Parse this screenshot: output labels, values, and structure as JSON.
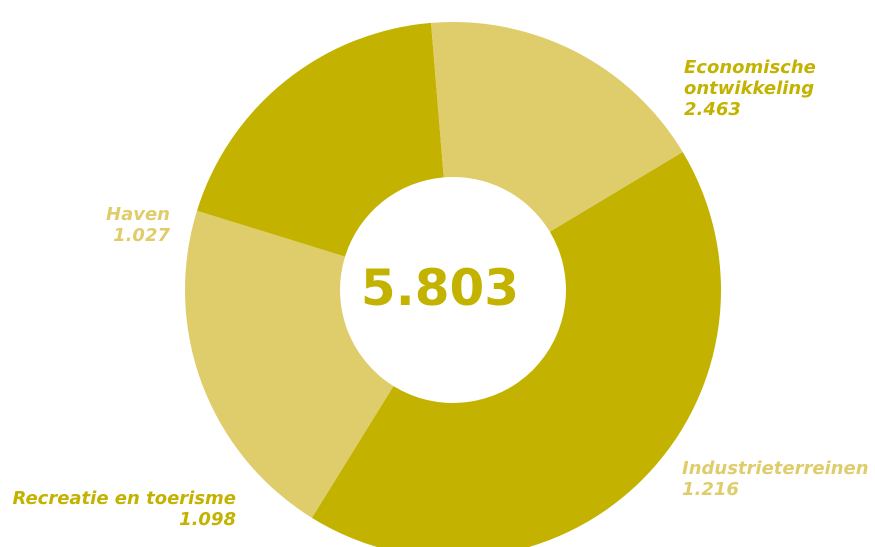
{
  "chart_data": {
    "type": "pie",
    "variant": "donut",
    "total": 5803,
    "center_label": "5.803",
    "colors": {
      "dark": "#c3b300",
      "light": "#dfcd6c"
    },
    "slices": [
      {
        "name": "Economische ontwikkeling",
        "label_lines": [
          "Economische",
          "ontwikkeling"
        ],
        "value": 2463,
        "value_label": "2.463",
        "color": "#c3b300"
      },
      {
        "name": "Industrieterreinen",
        "label_lines": [
          "Industrieterreinen"
        ],
        "value": 1216,
        "value_label": "1.216",
        "color": "#dfcd6c"
      },
      {
        "name": "Recreatie en toerisme",
        "label_lines": [
          "Recreatie en toerisme"
        ],
        "value": 1098,
        "value_label": "1.098",
        "color": "#c3b300"
      },
      {
        "name": "Haven",
        "label_lines": [
          "Haven"
        ],
        "value": 1027,
        "value_label": "1.027",
        "color": "#dfcd6c"
      }
    ]
  }
}
